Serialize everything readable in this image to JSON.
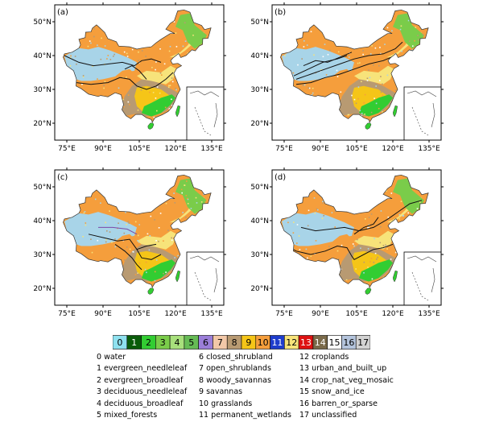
{
  "panels": [
    {
      "label": "(a)"
    },
    {
      "label": "(b)"
    },
    {
      "label": "(c)"
    },
    {
      "label": "(d)"
    }
  ],
  "axes": {
    "lon_ticks": [
      "75°E",
      "90°E",
      "105°E",
      "120°E",
      "135°E"
    ],
    "lat_ticks": [
      "50°N",
      "40°N",
      "30°N",
      "20°N"
    ]
  },
  "colorbar": {
    "values": [
      "0",
      "1",
      "2",
      "3",
      "4",
      "5",
      "6",
      "7",
      "8",
      "9",
      "10",
      "11",
      "12",
      "13",
      "14",
      "15",
      "16",
      "17"
    ],
    "colors": [
      "#8fe1ef",
      "#0a5c0a",
      "#32cd32",
      "#7acc4a",
      "#a8e07c",
      "#66bb55",
      "#9b7ed9",
      "#f2c8a8",
      "#b89a72",
      "#f5c518",
      "#f59e3c",
      "#1e3ccc",
      "#f7e37a",
      "#dd1111",
      "#7a6a4a",
      "#ffffff",
      "#b4c4dc",
      "#d2d2d2"
    ]
  },
  "legend": {
    "col1": [
      "0 water",
      "1 evergreen_needleleaf",
      "2 evergreen_broadleaf",
      "3 deciduous_needleleaf",
      "4 deciduous_broadleaf",
      "5 mixed_forests"
    ],
    "col2": [
      "6 closed_shrubland",
      "7 open_shrublands",
      "8 woody_savannas",
      "9 savannas",
      "10 grasslands",
      "11 permanent_wetlands"
    ],
    "col3": [
      "12 croplands",
      "13 urban_and_built_up",
      "14 crop_nat_veg_mosaic",
      "15 snow_and_ice",
      "16 barren_or_sparse",
      "17 unclassified"
    ]
  }
}
